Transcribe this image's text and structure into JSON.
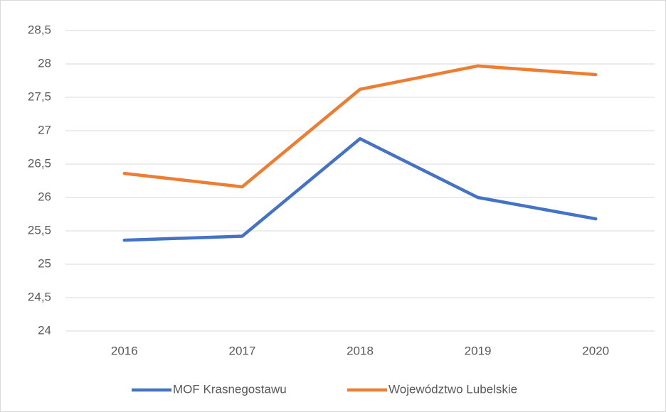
{
  "chart_data": {
    "type": "line",
    "categories": [
      "2016",
      "2017",
      "2018",
      "2019",
      "2020"
    ],
    "series": [
      {
        "name": "MOF Krasnegostawu",
        "color": "#4472c4",
        "values": [
          25.36,
          25.42,
          26.88,
          26.0,
          25.68
        ]
      },
      {
        "name": "Województwo Lubelskie",
        "color": "#ed7d31",
        "values": [
          26.36,
          26.16,
          27.62,
          27.97,
          27.84
        ]
      }
    ],
    "ylim": [
      24,
      28.5
    ],
    "yticks": [
      24,
      {
        "value": 24.5,
        "label": "24,5"
      },
      25,
      {
        "value": 25.5,
        "label": "25,5"
      },
      26,
      {
        "value": 26.5,
        "label": "26,5"
      },
      27,
      {
        "value": 27.5,
        "label": "27,5"
      },
      28,
      {
        "value": 28.5,
        "label": "28,5"
      }
    ],
    "grid": true,
    "legend": "bottom"
  }
}
